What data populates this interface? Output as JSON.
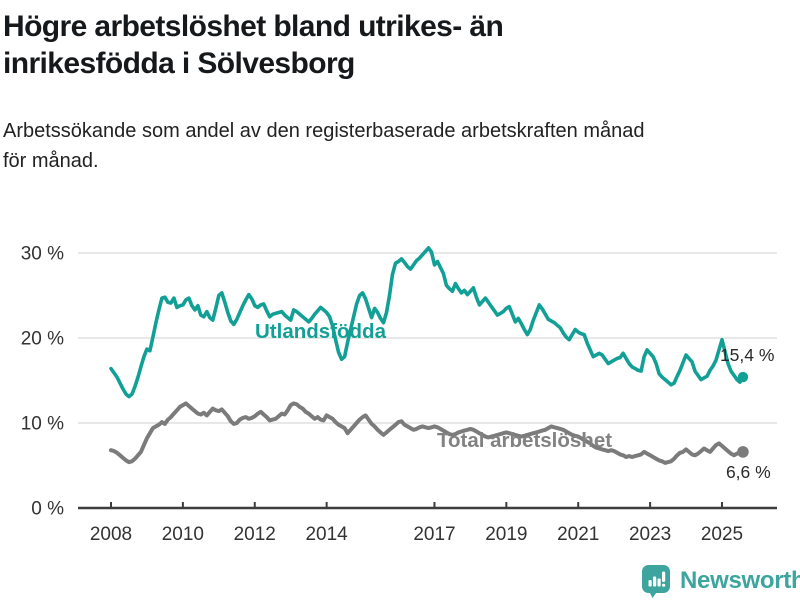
{
  "header": {
    "title_line1": "Högre arbetslöshet bland utrikes- än",
    "title_line2": "inrikesfödda i Sölvesborg",
    "subtitle_line1": "Arbetssökande som andel av den registerbaserade arbetskraften månad",
    "subtitle_line2": "för månad."
  },
  "footer": {
    "brand": "Newsworthy"
  },
  "colors": {
    "teal": "#12a096",
    "gray": "#7b7b7b",
    "label_gray": "#828282",
    "grid": "#d9d9d9",
    "axis": "#3d3d3d",
    "tick_text": "#333333",
    "annotation": "#2a2a2a",
    "logo": "#3da59e",
    "title": "#16191c"
  },
  "chart_data": {
    "type": "line",
    "title": "Högre arbetslöshet bland utrikes- än inrikesfödda i Sölvesborg",
    "subtitle": "Arbetssökande som andel av den registerbaserade arbetskraften månad för månad.",
    "x_unit": "month",
    "x_range": [
      "2008-01",
      "2025-08"
    ],
    "y_unit": "%",
    "ylim": [
      0,
      32
    ],
    "grid": "horizontal",
    "legend_position": "inline-labels",
    "x_ticks": {
      "years": [
        2008,
        2010,
        2012,
        2014,
        2017,
        2019,
        2021,
        2023,
        2025
      ],
      "labels": [
        "2008",
        "2010",
        "2012",
        "2014",
        "2017",
        "2019",
        "2021",
        "2023",
        "2025"
      ]
    },
    "y_ticks": {
      "values": [
        0,
        10,
        20,
        30
      ],
      "labels": [
        "0 %",
        "10 %",
        "20 %",
        "30 %"
      ]
    },
    "series": [
      {
        "name": "Utlandsfödda",
        "color": "#12a096",
        "label_color": "#12a096",
        "end_label": "15,4 %",
        "end_value": 15.4,
        "values": [
          16.4,
          15.9,
          15.4,
          14.7,
          14.0,
          13.4,
          13.1,
          13.4,
          14.3,
          15.4,
          16.6,
          17.8,
          18.7,
          18.5,
          20.1,
          21.8,
          23.3,
          24.7,
          24.8,
          24.2,
          24.1,
          24.7,
          23.6,
          23.8,
          23.9,
          24.5,
          24.7,
          23.8,
          23.3,
          23.8,
          22.7,
          22.5,
          23.1,
          22.4,
          22.1,
          23.5,
          25.0,
          25.3,
          24.2,
          23.0,
          22.0,
          21.6,
          22.2,
          23.0,
          23.8,
          24.5,
          25.1,
          24.6,
          23.8,
          23.6,
          23.9,
          24.0,
          23.2,
          22.5,
          22.8,
          22.9,
          23.0,
          23.1,
          22.7,
          22.4,
          22.1,
          23.3,
          23.1,
          22.8,
          22.5,
          22.2,
          21.9,
          22.3,
          22.8,
          23.2,
          23.6,
          23.3,
          23.0,
          22.5,
          21.4,
          19.8,
          18.3,
          17.5,
          17.8,
          19.5,
          21.0,
          22.5,
          24.0,
          25.0,
          25.3,
          24.6,
          23.5,
          22.4,
          23.5,
          23.0,
          22.3,
          21.8,
          23.0,
          25.0,
          27.5,
          28.8,
          29.0,
          29.3,
          28.9,
          28.4,
          28.1,
          28.6,
          29.1,
          29.4,
          29.8,
          30.2,
          30.6,
          30.1,
          28.6,
          29.0,
          28.3,
          27.6,
          26.2,
          25.8,
          25.5,
          26.4,
          25.8,
          25.3,
          25.6,
          25.1,
          25.5,
          25.9,
          24.8,
          23.9,
          24.3,
          24.7,
          24.2,
          23.7,
          23.2,
          22.7,
          22.9,
          23.1,
          23.5,
          23.7,
          22.8,
          21.9,
          22.3,
          21.7,
          21.0,
          20.4,
          21.0,
          22.1,
          23.0,
          23.9,
          23.4,
          22.8,
          22.2,
          22.0,
          21.8,
          21.5,
          21.2,
          20.6,
          20.1,
          19.8,
          20.4,
          21.0,
          20.7,
          20.5,
          20.4,
          19.4,
          18.6,
          17.8,
          18.0,
          18.2,
          18.0,
          17.5,
          17.0,
          17.2,
          17.4,
          17.6,
          17.7,
          18.2,
          17.6,
          17.0,
          16.6,
          16.4,
          16.2,
          16.1,
          17.8,
          18.6,
          18.2,
          17.8,
          17.0,
          15.8,
          15.4,
          15.1,
          14.8,
          14.5,
          14.7,
          15.5,
          16.2,
          17.1,
          18.0,
          17.6,
          17.2,
          16.1,
          15.6,
          15.1,
          15.3,
          15.5,
          16.2,
          16.7,
          17.4,
          18.6,
          19.8,
          18.4,
          17.0,
          16.1,
          15.6,
          15.1,
          14.8,
          15.4
        ]
      },
      {
        "name": "Total arbetslöshet",
        "color": "#7b7b7b",
        "label_color": "#828282",
        "end_label": "6,6 %",
        "end_value": 6.6,
        "values": [
          6.8,
          6.7,
          6.5,
          6.2,
          5.9,
          5.6,
          5.4,
          5.5,
          5.8,
          6.2,
          6.6,
          7.4,
          8.2,
          8.8,
          9.4,
          9.6,
          9.8,
          10.1,
          9.9,
          10.4,
          10.7,
          11.1,
          11.5,
          11.9,
          12.1,
          12.3,
          12.0,
          11.7,
          11.4,
          11.1,
          11.0,
          11.2,
          10.9,
          11.3,
          11.7,
          11.5,
          11.4,
          11.6,
          11.2,
          10.8,
          10.2,
          9.9,
          10.0,
          10.4,
          10.6,
          10.7,
          10.5,
          10.6,
          10.8,
          11.1,
          11.3,
          11.0,
          10.7,
          10.3,
          10.4,
          10.5,
          10.8,
          11.1,
          11.0,
          11.5,
          12.1,
          12.3,
          12.2,
          11.9,
          11.7,
          11.3,
          11.1,
          10.8,
          10.5,
          10.7,
          10.4,
          10.3,
          10.9,
          10.7,
          10.5,
          10.1,
          9.8,
          9.6,
          9.4,
          8.8,
          9.2,
          9.6,
          10.0,
          10.4,
          10.7,
          10.9,
          10.4,
          9.9,
          9.6,
          9.2,
          8.9,
          8.6,
          8.9,
          9.2,
          9.5,
          9.8,
          10.1,
          10.2,
          9.8,
          9.6,
          9.4,
          9.2,
          9.3,
          9.5,
          9.6,
          9.5,
          9.4,
          9.5,
          9.6,
          9.5,
          9.3,
          9.1,
          8.9,
          8.7,
          8.6,
          8.7,
          8.9,
          9.0,
          9.1,
          9.2,
          9.3,
          9.2,
          9.0,
          8.8,
          8.6,
          8.4,
          8.3,
          8.4,
          8.5,
          8.6,
          8.7,
          8.8,
          8.9,
          8.8,
          8.7,
          8.6,
          8.5,
          8.4,
          8.5,
          8.6,
          8.7,
          8.8,
          8.9,
          9.0,
          9.1,
          9.2,
          9.4,
          9.6,
          9.5,
          9.4,
          9.3,
          9.2,
          9.0,
          8.8,
          8.6,
          8.5,
          8.4,
          8.2,
          8.0,
          7.8,
          7.6,
          7.3,
          7.1,
          7.0,
          6.9,
          6.8,
          6.7,
          6.8,
          6.7,
          6.5,
          6.3,
          6.2,
          6.0,
          6.1,
          6.0,
          6.1,
          6.2,
          6.3,
          6.6,
          6.4,
          6.2,
          6.0,
          5.8,
          5.6,
          5.5,
          5.3,
          5.4,
          5.5,
          5.8,
          6.2,
          6.5,
          6.6,
          6.9,
          6.6,
          6.3,
          6.2,
          6.4,
          6.7,
          7.0,
          6.8,
          6.6,
          7.0,
          7.4,
          7.6,
          7.3,
          7.0,
          6.7,
          6.4,
          6.2,
          6.4,
          6.5,
          6.6
        ]
      }
    ]
  }
}
